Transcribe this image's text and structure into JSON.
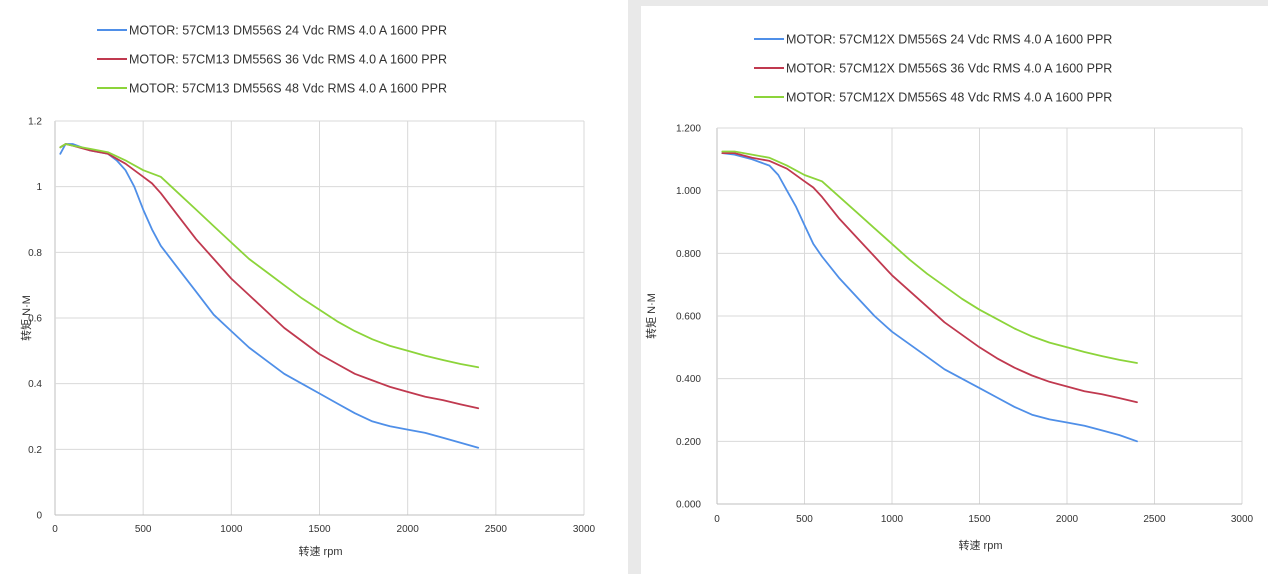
{
  "chart_data": [
    {
      "type": "line",
      "title": "",
      "xlabel": "转速 rpm",
      "ylabel": "转矩 N·M",
      "xlim": [
        0,
        3000
      ],
      "ylim": [
        0,
        1.2
      ],
      "xticks": [
        "0",
        "500",
        "1000",
        "1500",
        "2000",
        "2500",
        "3000"
      ],
      "yticks": [
        "0",
        "0.2",
        "0.4",
        "0.6",
        "0.8",
        "1",
        "1.2"
      ],
      "grid": true,
      "legend_position": "top",
      "series": [
        {
          "name": "MOTOR: 57CM13 DM556S 24 Vdc  RMS 4.0 A  1600 PPR",
          "color": "#4f8fe8",
          "x": [
            30,
            60,
            100,
            200,
            300,
            350,
            400,
            450,
            500,
            550,
            600,
            700,
            800,
            900,
            1000,
            1100,
            1200,
            1300,
            1400,
            1500,
            1600,
            1700,
            1800,
            1900,
            2000,
            2100,
            2200,
            2300,
            2400
          ],
          "y": [
            1.1,
            1.13,
            1.13,
            1.11,
            1.1,
            1.08,
            1.05,
            1.0,
            0.93,
            0.87,
            0.82,
            0.75,
            0.68,
            0.61,
            0.56,
            0.51,
            0.47,
            0.43,
            0.4,
            0.37,
            0.34,
            0.31,
            0.285,
            0.27,
            0.26,
            0.25,
            0.235,
            0.22,
            0.205
          ]
        },
        {
          "name": "MOTOR: 57CM13 DM556S 36 Vdc  RMS 4.0 A  1600 PPR",
          "color": "#c0394f",
          "x": [
            30,
            60,
            100,
            200,
            300,
            400,
            500,
            550,
            600,
            700,
            800,
            900,
            1000,
            1100,
            1200,
            1300,
            1400,
            1500,
            1600,
            1700,
            1800,
            1900,
            2000,
            2100,
            2200,
            2300,
            2400
          ],
          "y": [
            1.12,
            1.13,
            1.125,
            1.11,
            1.1,
            1.07,
            1.03,
            1.01,
            0.98,
            0.91,
            0.84,
            0.78,
            0.72,
            0.67,
            0.62,
            0.57,
            0.53,
            0.49,
            0.46,
            0.43,
            0.41,
            0.39,
            0.375,
            0.36,
            0.35,
            0.337,
            0.325
          ]
        },
        {
          "name": "MOTOR: 57CM13 DM556S 48 Vdc  RMS 4.0 A  1600 PPR",
          "color": "#8cd43a",
          "x": [
            30,
            60,
            100,
            200,
            300,
            400,
            500,
            600,
            700,
            800,
            900,
            1000,
            1100,
            1200,
            1300,
            1400,
            1500,
            1600,
            1700,
            1800,
            1900,
            2000,
            2100,
            2200,
            2300,
            2400
          ],
          "y": [
            1.12,
            1.13,
            1.125,
            1.115,
            1.105,
            1.08,
            1.05,
            1.03,
            0.98,
            0.93,
            0.88,
            0.83,
            0.78,
            0.74,
            0.7,
            0.66,
            0.625,
            0.59,
            0.56,
            0.535,
            0.515,
            0.5,
            0.485,
            0.472,
            0.46,
            0.45
          ]
        }
      ]
    },
    {
      "type": "line",
      "title": "",
      "xlabel": "转速 rpm",
      "ylabel": "转矩 N·M",
      "xlim": [
        0,
        3000
      ],
      "ylim": [
        0,
        1.2
      ],
      "xticks": [
        "0",
        "500",
        "1000",
        "1500",
        "2000",
        "2500",
        "3000"
      ],
      "yticks": [
        "0.000",
        "0.200",
        "0.400",
        "0.600",
        "0.800",
        "1.000",
        "1.200"
      ],
      "grid": true,
      "legend_position": "top",
      "series": [
        {
          "name": "MOTOR: 57CM12X DM556S 24 Vdc  RMS 4.0 A  1600 PPR",
          "color": "#4f8fe8",
          "x": [
            30,
            100,
            200,
            300,
            350,
            400,
            450,
            500,
            550,
            600,
            700,
            800,
            900,
            1000,
            1100,
            1200,
            1300,
            1400,
            1500,
            1600,
            1700,
            1800,
            1900,
            2000,
            2100,
            2200,
            2300,
            2400
          ],
          "y": [
            1.12,
            1.115,
            1.1,
            1.08,
            1.05,
            1.0,
            0.95,
            0.89,
            0.83,
            0.79,
            0.72,
            0.66,
            0.6,
            0.55,
            0.51,
            0.47,
            0.43,
            0.4,
            0.37,
            0.34,
            0.31,
            0.285,
            0.27,
            0.26,
            0.25,
            0.235,
            0.22,
            0.2
          ]
        },
        {
          "name": "MOTOR: 57CM12X DM556S 36 Vdc  RMS 4.0 A  1600 PPR",
          "color": "#c0394f",
          "x": [
            30,
            100,
            200,
            300,
            400,
            500,
            550,
            600,
            700,
            800,
            900,
            1000,
            1100,
            1200,
            1300,
            1400,
            1500,
            1600,
            1700,
            1800,
            1900,
            2000,
            2100,
            2200,
            2300,
            2400
          ],
          "y": [
            1.12,
            1.12,
            1.105,
            1.095,
            1.07,
            1.03,
            1.01,
            0.98,
            0.91,
            0.85,
            0.79,
            0.73,
            0.68,
            0.63,
            0.58,
            0.54,
            0.5,
            0.465,
            0.435,
            0.41,
            0.39,
            0.375,
            0.36,
            0.35,
            0.338,
            0.325
          ]
        },
        {
          "name": "MOTOR: 57CM12X DM556S 48 Vdc  RMS 4.0 A  1600 PPR",
          "color": "#8cd43a",
          "x": [
            30,
            100,
            200,
            300,
            400,
            500,
            600,
            700,
            800,
            900,
            1000,
            1100,
            1200,
            1300,
            1400,
            1500,
            1600,
            1700,
            1800,
            1900,
            2000,
            2100,
            2200,
            2300,
            2400
          ],
          "y": [
            1.125,
            1.125,
            1.115,
            1.105,
            1.08,
            1.05,
            1.03,
            0.98,
            0.93,
            0.88,
            0.83,
            0.78,
            0.735,
            0.695,
            0.655,
            0.62,
            0.59,
            0.56,
            0.535,
            0.515,
            0.5,
            0.485,
            0.472,
            0.46,
            0.45
          ]
        }
      ]
    }
  ]
}
